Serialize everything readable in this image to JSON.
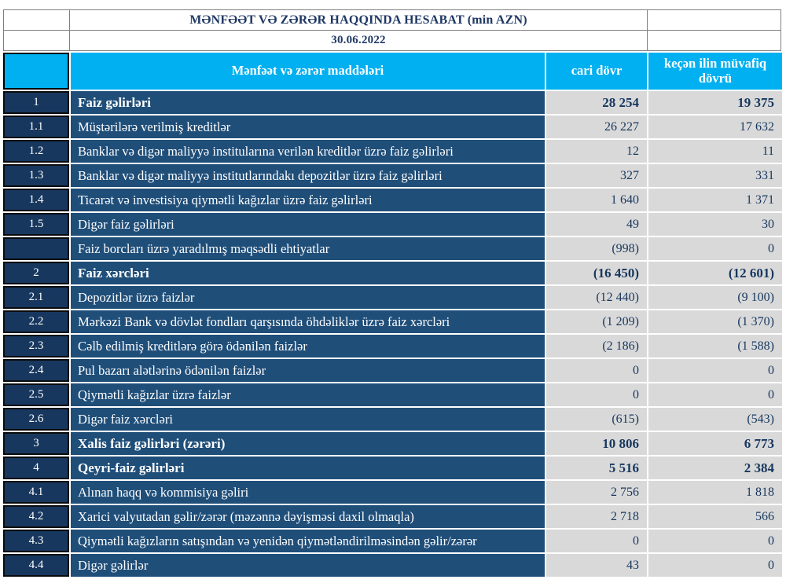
{
  "report": {
    "title": "MƏNFƏƏT VƏ ZƏRƏR HAQQINDA HESABAT (min AZN)",
    "date": "30.06.2022"
  },
  "colors": {
    "header_cyan": "#00b0f0",
    "label_navy": "#1f4e79",
    "row_number_navy": "#17375e",
    "value_gray": "#d9d9d9",
    "title_text": "#1f3864",
    "border_gray": "#7f7f7f",
    "cell_border_black": "#0b0b0b"
  },
  "table": {
    "header": {
      "items": "Mənfəət və zərər maddələri",
      "current": "cari dövr",
      "previous": "keçən ilin müvafiq dövrü"
    },
    "rows": [
      {
        "no": "1",
        "label": "Faiz  gəlirləri",
        "current": "28 254",
        "previous": "19 375",
        "bold": true
      },
      {
        "no": "1.1",
        "label": "Müştərilərə verilmiş kreditlər",
        "current": "26 227",
        "previous": "17 632",
        "bold": false
      },
      {
        "no": "1.2",
        "label": "Banklar və digər maliyyə institularına verilən kreditlər üzrə faiz gəlirləri",
        "current": "12",
        "previous": "11",
        "bold": false
      },
      {
        "no": "1.3",
        "label": "Banklar və digər maliyyə institutlarındakı depozitlər üzrə faiz gəlirləri",
        "current": "327",
        "previous": "331",
        "bold": false
      },
      {
        "no": "1.4",
        "label": "Ticarət və investisiya qiymətli kağızlar üzrə faiz gəlirləri",
        "current": "1 640",
        "previous": "1 371",
        "bold": false
      },
      {
        "no": "1.5",
        "label": "Digər faiz gəlirləri",
        "current": "49",
        "previous": "30",
        "bold": false
      },
      {
        "no": "",
        "label": "Faiz borcları üzrə yaradılmış məqsədli ehtiyatlar",
        "current": "(998)",
        "previous": "0",
        "bold": false
      },
      {
        "no": "2",
        "label": "Faiz xərcləri",
        "current": "(16 450)",
        "previous": "(12 601)",
        "bold": true
      },
      {
        "no": "2.1",
        "label": "Depozitlər üzrə faizlər",
        "current": "(12 440)",
        "previous": "(9 100)",
        "bold": false
      },
      {
        "no": "2.2",
        "label": "Mərkəzi Bank və dövlət fondları qarşısında öhdəliklər üzrə faiz xərcləri",
        "current": "(1 209)",
        "previous": "(1 370)",
        "bold": false
      },
      {
        "no": "2.3",
        "label": "Cəlb edilmiş kreditlərə görə ödənilən faizlər",
        "current": "(2 186)",
        "previous": "(1 588)",
        "bold": false
      },
      {
        "no": "2.4",
        "label": "Pul bazarı alətlərinə ödənilən faizlər",
        "current": "0",
        "previous": "0",
        "bold": false
      },
      {
        "no": "2.5",
        "label": "Qiymətli kağızlar üzrə faizlər",
        "current": "0",
        "previous": "0",
        "bold": false
      },
      {
        "no": "2.6",
        "label": "Digər faiz xərcləri",
        "current": "(615)",
        "previous": "(543)",
        "bold": false
      },
      {
        "no": "3",
        "label": "Xalis faiz gəlirləri (zərəri)",
        "current": "10 806",
        "previous": "6 773",
        "bold": true
      },
      {
        "no": "4",
        "label": "Qeyri-faiz gəlirləri",
        "current": "5 516",
        "previous": "2 384",
        "bold": true
      },
      {
        "no": "4.1",
        "label": "Alınan haqq və kommisiya gəliri",
        "current": "2 756",
        "previous": "1 818",
        "bold": false
      },
      {
        "no": "4.2",
        "label": "Xarici valyutadan gəlir/zərər (məzənnə dəyişməsi daxil olmaqla)",
        "current": "2 718",
        "previous": "566",
        "bold": false
      },
      {
        "no": "4.3",
        "label": "Qiymətli kağızların satışından və yenidən qiymətləndirilməsindən gəlir/zərər",
        "current": "0",
        "previous": "0",
        "bold": false
      },
      {
        "no": "4.4",
        "label": "Digər gəlirlər",
        "current": "43",
        "previous": "0",
        "bold": false
      }
    ]
  }
}
